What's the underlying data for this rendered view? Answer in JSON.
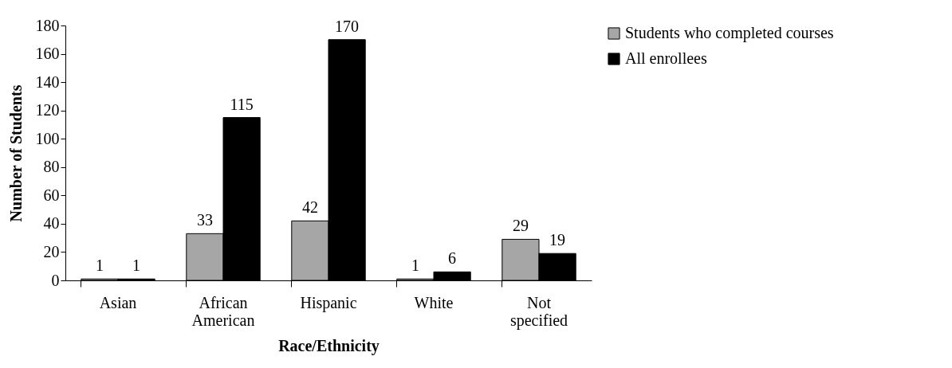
{
  "chart_data": {
    "type": "bar",
    "xlabel": "Race/Ethnicity",
    "ylabel": "Number of Students",
    "categories": [
      "Asian",
      "African American",
      "Hispanic",
      "White",
      "Not specified"
    ],
    "series": [
      {
        "name": "Students who completed courses",
        "color": "#a6a6a6",
        "values": [
          1,
          33,
          42,
          1,
          29
        ]
      },
      {
        "name": "All enrollees",
        "color": "#000000",
        "values": [
          1,
          115,
          170,
          6,
          19
        ]
      }
    ],
    "ylim": [
      0,
      180
    ],
    "yticks": [
      0,
      20,
      40,
      60,
      80,
      100,
      120,
      140,
      160,
      180
    ],
    "grid": false,
    "legend": "right",
    "data_labels": true
  }
}
